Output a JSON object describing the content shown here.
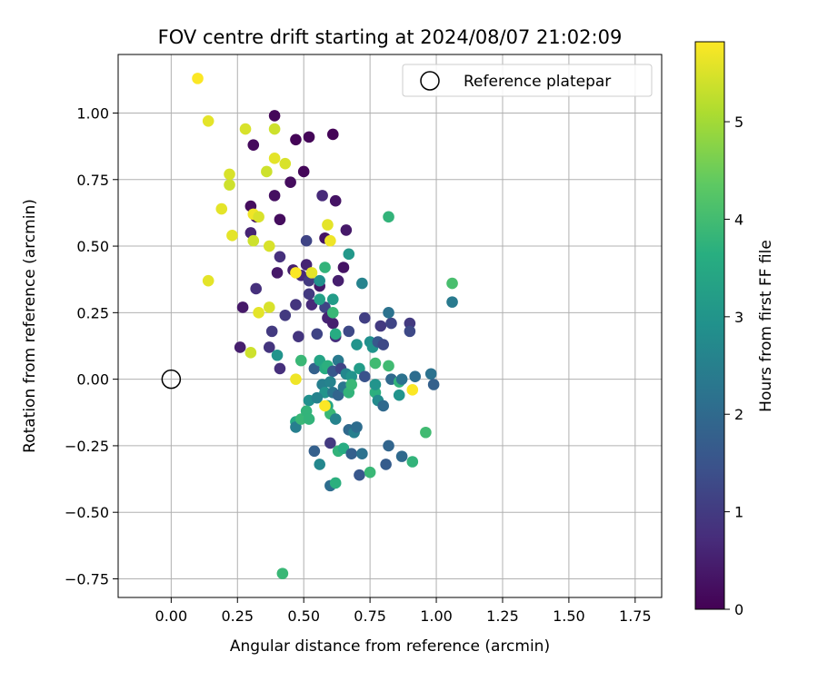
{
  "chart_data": {
    "type": "scatter",
    "title": "FOV centre drift starting at 2024/08/07 21:02:09",
    "xlabel": "Angular distance from reference (arcmin)",
    "ylabel": "Rotation from reference (arcmin)",
    "xlim": [
      -0.2,
      1.85
    ],
    "ylim": [
      -0.82,
      1.22
    ],
    "xticks": [
      0.0,
      0.25,
      0.5,
      0.75,
      1.0,
      1.25,
      1.5,
      1.75
    ],
    "yticks": [
      -0.75,
      -0.5,
      -0.25,
      0.0,
      0.25,
      0.5,
      0.75,
      1.0
    ],
    "xtick_labels": [
      "0.00",
      "0.25",
      "0.50",
      "0.75",
      "1.00",
      "1.25",
      "1.50",
      "1.75"
    ],
    "ytick_labels": [
      "−0.75",
      "−0.50",
      "−0.25",
      "0.00",
      "0.25",
      "0.50",
      "0.75",
      "1.00"
    ],
    "grid": true,
    "legend": {
      "placement": "top-right",
      "label": "Reference platepar"
    },
    "reference_point": {
      "x": 0.0,
      "y": 0.0
    },
    "colorbar": {
      "label": "Hours from first FF file",
      "colormap": "viridis",
      "range": [
        0,
        5.82
      ],
      "ticks": [
        0,
        1,
        2,
        3,
        4,
        5
      ],
      "tick_labels": [
        "0",
        "1",
        "2",
        "3",
        "4",
        "5"
      ]
    },
    "points": [
      {
        "x": 0.39,
        "y": 0.99,
        "c": 0.1
      },
      {
        "x": 0.31,
        "y": 0.88,
        "c": 0.15
      },
      {
        "x": 0.47,
        "y": 0.9,
        "c": 0.05
      },
      {
        "x": 0.52,
        "y": 0.91,
        "c": 0.08
      },
      {
        "x": 0.61,
        "y": 0.92,
        "c": 0.05
      },
      {
        "x": 0.5,
        "y": 0.78,
        "c": 0.1
      },
      {
        "x": 0.45,
        "y": 0.74,
        "c": 0.2
      },
      {
        "x": 0.39,
        "y": 0.69,
        "c": 0.25
      },
      {
        "x": 0.57,
        "y": 0.69,
        "c": 0.7
      },
      {
        "x": 0.62,
        "y": 0.67,
        "c": 0.3
      },
      {
        "x": 0.3,
        "y": 0.65,
        "c": 0.2
      },
      {
        "x": 0.32,
        "y": 0.61,
        "c": 0.3
      },
      {
        "x": 0.41,
        "y": 0.6,
        "c": 0.2
      },
      {
        "x": 0.3,
        "y": 0.55,
        "c": 0.6
      },
      {
        "x": 0.58,
        "y": 0.53,
        "c": 0.3
      },
      {
        "x": 0.66,
        "y": 0.56,
        "c": 0.4
      },
      {
        "x": 0.51,
        "y": 0.52,
        "c": 1.2
      },
      {
        "x": 0.41,
        "y": 0.46,
        "c": 0.8
      },
      {
        "x": 0.46,
        "y": 0.41,
        "c": 0.5
      },
      {
        "x": 0.4,
        "y": 0.4,
        "c": 0.4
      },
      {
        "x": 0.51,
        "y": 0.43,
        "c": 0.6
      },
      {
        "x": 0.49,
        "y": 0.39,
        "c": 0.7
      },
      {
        "x": 0.56,
        "y": 0.35,
        "c": 0.4
      },
      {
        "x": 0.65,
        "y": 0.42,
        "c": 0.3
      },
      {
        "x": 0.63,
        "y": 0.37,
        "c": 0.5
      },
      {
        "x": 0.32,
        "y": 0.34,
        "c": 0.8
      },
      {
        "x": 0.27,
        "y": 0.27,
        "c": 0.4
      },
      {
        "x": 0.47,
        "y": 0.28,
        "c": 0.9
      },
      {
        "x": 0.52,
        "y": 0.32,
        "c": 1.0
      },
      {
        "x": 0.53,
        "y": 0.28,
        "c": 0.7
      },
      {
        "x": 0.43,
        "y": 0.24,
        "c": 1.0
      },
      {
        "x": 0.58,
        "y": 0.27,
        "c": 1.2
      },
      {
        "x": 0.59,
        "y": 0.23,
        "c": 0.6
      },
      {
        "x": 0.61,
        "y": 0.21,
        "c": 0.5
      },
      {
        "x": 0.38,
        "y": 0.18,
        "c": 1.0
      },
      {
        "x": 0.48,
        "y": 0.16,
        "c": 0.9
      },
      {
        "x": 0.55,
        "y": 0.17,
        "c": 1.2
      },
      {
        "x": 0.62,
        "y": 0.16,
        "c": 0.8
      },
      {
        "x": 0.67,
        "y": 0.18,
        "c": 1.3
      },
      {
        "x": 0.26,
        "y": 0.12,
        "c": 0.5
      },
      {
        "x": 0.37,
        "y": 0.12,
        "c": 0.9
      },
      {
        "x": 0.41,
        "y": 0.04,
        "c": 0.8
      },
      {
        "x": 0.52,
        "y": 0.37,
        "c": 1.0
      },
      {
        "x": 0.73,
        "y": 0.23,
        "c": 1.1
      },
      {
        "x": 0.79,
        "y": 0.2,
        "c": 1.0
      },
      {
        "x": 0.83,
        "y": 0.21,
        "c": 1.2
      },
      {
        "x": 0.9,
        "y": 0.21,
        "c": 1.0
      },
      {
        "x": 0.9,
        "y": 0.18,
        "c": 1.3
      },
      {
        "x": 0.82,
        "y": 0.25,
        "c": 2.2
      },
      {
        "x": 0.72,
        "y": 0.36,
        "c": 2.6
      },
      {
        "x": 0.67,
        "y": 0.47,
        "c": 3.1
      },
      {
        "x": 0.82,
        "y": 0.61,
        "c": 3.8
      },
      {
        "x": 1.06,
        "y": 0.36,
        "c": 4.1
      },
      {
        "x": 1.06,
        "y": 0.29,
        "c": 2.4
      },
      {
        "x": 0.56,
        "y": 0.37,
        "c": 2.9
      },
      {
        "x": 0.56,
        "y": 0.3,
        "c": 3.3
      },
      {
        "x": 0.58,
        "y": 0.42,
        "c": 3.8
      },
      {
        "x": 0.61,
        "y": 0.3,
        "c": 3.2
      },
      {
        "x": 0.61,
        "y": 0.25,
        "c": 3.9
      },
      {
        "x": 0.62,
        "y": 0.17,
        "c": 3.6
      },
      {
        "x": 0.4,
        "y": 0.09,
        "c": 3.0
      },
      {
        "x": 0.49,
        "y": 0.07,
        "c": 3.9
      },
      {
        "x": 0.54,
        "y": 0.04,
        "c": 1.8
      },
      {
        "x": 0.56,
        "y": 0.07,
        "c": 3.4
      },
      {
        "x": 0.58,
        "y": 0.04,
        "c": 3.6
      },
      {
        "x": 0.59,
        "y": 0.05,
        "c": 3.7
      },
      {
        "x": 0.61,
        "y": 0.03,
        "c": 1.6
      },
      {
        "x": 0.63,
        "y": 0.07,
        "c": 2.4
      },
      {
        "x": 0.64,
        "y": 0.04,
        "c": 1.2
      },
      {
        "x": 0.66,
        "y": 0.02,
        "c": 2.7
      },
      {
        "x": 0.68,
        "y": 0.01,
        "c": 3.0
      },
      {
        "x": 0.7,
        "y": 0.13,
        "c": 3.0
      },
      {
        "x": 0.71,
        "y": 0.04,
        "c": 3.2
      },
      {
        "x": 0.73,
        "y": 0.01,
        "c": 1.5
      },
      {
        "x": 0.75,
        "y": 0.14,
        "c": 2.9
      },
      {
        "x": 0.76,
        "y": 0.12,
        "c": 3.0
      },
      {
        "x": 0.77,
        "y": 0.06,
        "c": 4.0
      },
      {
        "x": 0.78,
        "y": 0.14,
        "c": 1.6
      },
      {
        "x": 0.8,
        "y": 0.13,
        "c": 1.3
      },
      {
        "x": 0.82,
        "y": 0.05,
        "c": 4.0
      },
      {
        "x": 0.83,
        "y": 0.0,
        "c": 2.0
      },
      {
        "x": 0.86,
        "y": -0.01,
        "c": 3.8
      },
      {
        "x": 0.87,
        "y": 0.0,
        "c": 2.2
      },
      {
        "x": 0.92,
        "y": 0.01,
        "c": 2.1
      },
      {
        "x": 0.98,
        "y": 0.02,
        "c": 2.2
      },
      {
        "x": 0.99,
        "y": -0.02,
        "c": 1.8
      },
      {
        "x": 0.57,
        "y": -0.02,
        "c": 2.5
      },
      {
        "x": 0.58,
        "y": -0.05,
        "c": 3.0
      },
      {
        "x": 0.6,
        "y": -0.01,
        "c": 2.6
      },
      {
        "x": 0.61,
        "y": -0.05,
        "c": 2.3
      },
      {
        "x": 0.63,
        "y": -0.06,
        "c": 1.9
      },
      {
        "x": 0.65,
        "y": -0.03,
        "c": 2.3
      },
      {
        "x": 0.67,
        "y": -0.05,
        "c": 3.8
      },
      {
        "x": 0.68,
        "y": -0.02,
        "c": 3.9
      },
      {
        "x": 0.77,
        "y": -0.05,
        "c": 3.7
      },
      {
        "x": 0.77,
        "y": -0.02,
        "c": 3.0
      },
      {
        "x": 0.78,
        "y": -0.08,
        "c": 2.8
      },
      {
        "x": 0.8,
        "y": -0.1,
        "c": 2.0
      },
      {
        "x": 0.86,
        "y": -0.06,
        "c": 3.0
      },
      {
        "x": 0.52,
        "y": -0.08,
        "c": 2.9
      },
      {
        "x": 0.55,
        "y": -0.07,
        "c": 2.6
      },
      {
        "x": 0.59,
        "y": -0.1,
        "c": 3.4
      },
      {
        "x": 0.6,
        "y": -0.13,
        "c": 3.9
      },
      {
        "x": 0.62,
        "y": -0.15,
        "c": 2.6
      },
      {
        "x": 0.47,
        "y": -0.16,
        "c": 3.5
      },
      {
        "x": 0.47,
        "y": -0.18,
        "c": 2.5
      },
      {
        "x": 0.49,
        "y": -0.15,
        "c": 3.9
      },
      {
        "x": 0.51,
        "y": -0.12,
        "c": 3.8
      },
      {
        "x": 0.52,
        "y": -0.15,
        "c": 3.8
      },
      {
        "x": 0.67,
        "y": -0.19,
        "c": 2.0
      },
      {
        "x": 0.69,
        "y": -0.2,
        "c": 2.5
      },
      {
        "x": 0.7,
        "y": -0.18,
        "c": 2.1
      },
      {
        "x": 0.54,
        "y": -0.27,
        "c": 1.8
      },
      {
        "x": 0.56,
        "y": -0.32,
        "c": 2.7
      },
      {
        "x": 0.6,
        "y": -0.24,
        "c": 1.0
      },
      {
        "x": 0.63,
        "y": -0.27,
        "c": 3.8
      },
      {
        "x": 0.65,
        "y": -0.26,
        "c": 3.6
      },
      {
        "x": 0.68,
        "y": -0.28,
        "c": 1.8
      },
      {
        "x": 0.72,
        "y": -0.28,
        "c": 2.2
      },
      {
        "x": 0.82,
        "y": -0.25,
        "c": 1.9
      },
      {
        "x": 0.87,
        "y": -0.29,
        "c": 2.0
      },
      {
        "x": 0.91,
        "y": -0.31,
        "c": 3.8
      },
      {
        "x": 0.96,
        "y": -0.2,
        "c": 4.0
      },
      {
        "x": 0.71,
        "y": -0.36,
        "c": 1.6
      },
      {
        "x": 0.75,
        "y": -0.35,
        "c": 3.9
      },
      {
        "x": 0.81,
        "y": -0.32,
        "c": 1.7
      },
      {
        "x": 0.6,
        "y": -0.4,
        "c": 2.1
      },
      {
        "x": 0.62,
        "y": -0.39,
        "c": 3.7
      },
      {
        "x": 0.42,
        "y": -0.73,
        "c": 3.9
      },
      {
        "x": 0.1,
        "y": 1.13,
        "c": 5.8
      },
      {
        "x": 0.14,
        "y": 0.97,
        "c": 5.6
      },
      {
        "x": 0.28,
        "y": 0.94,
        "c": 5.5
      },
      {
        "x": 0.39,
        "y": 0.94,
        "c": 5.4
      },
      {
        "x": 0.39,
        "y": 0.83,
        "c": 5.6
      },
      {
        "x": 0.36,
        "y": 0.78,
        "c": 5.4
      },
      {
        "x": 0.43,
        "y": 0.81,
        "c": 5.5
      },
      {
        "x": 0.22,
        "y": 0.77,
        "c": 5.5
      },
      {
        "x": 0.22,
        "y": 0.73,
        "c": 5.4
      },
      {
        "x": 0.19,
        "y": 0.64,
        "c": 5.6
      },
      {
        "x": 0.31,
        "y": 0.62,
        "c": 5.7
      },
      {
        "x": 0.33,
        "y": 0.61,
        "c": 5.5
      },
      {
        "x": 0.23,
        "y": 0.54,
        "c": 5.6
      },
      {
        "x": 0.31,
        "y": 0.52,
        "c": 5.4
      },
      {
        "x": 0.37,
        "y": 0.5,
        "c": 5.5
      },
      {
        "x": 0.59,
        "y": 0.58,
        "c": 5.6
      },
      {
        "x": 0.6,
        "y": 0.52,
        "c": 5.7
      },
      {
        "x": 0.47,
        "y": 0.4,
        "c": 5.8
      },
      {
        "x": 0.53,
        "y": 0.4,
        "c": 5.6
      },
      {
        "x": 0.14,
        "y": 0.37,
        "c": 5.6
      },
      {
        "x": 0.33,
        "y": 0.25,
        "c": 5.6
      },
      {
        "x": 0.37,
        "y": 0.27,
        "c": 5.5
      },
      {
        "x": 0.3,
        "y": 0.1,
        "c": 5.4
      },
      {
        "x": 0.47,
        "y": 0.0,
        "c": 5.7
      },
      {
        "x": 0.58,
        "y": -0.1,
        "c": 5.8
      },
      {
        "x": 0.91,
        "y": -0.04,
        "c": 5.8
      }
    ]
  }
}
